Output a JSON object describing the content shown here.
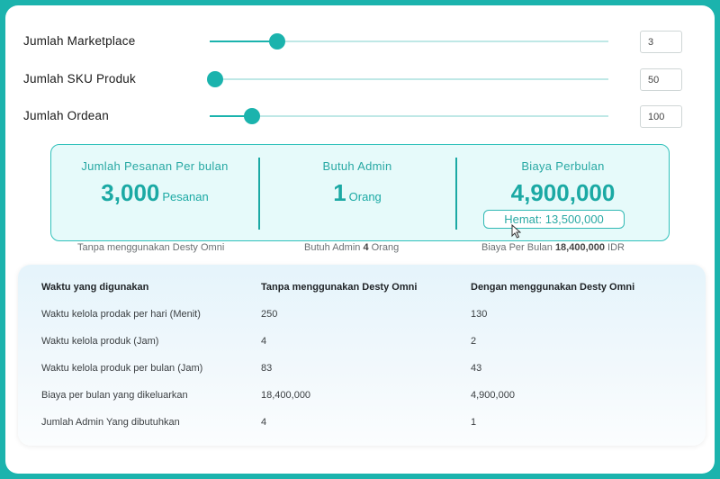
{
  "sliders": [
    {
      "label": "Jumlah Marketplace",
      "value": "3",
      "fill": 0.17
    },
    {
      "label": "Jumlah SKU Produk",
      "value": "50",
      "fill": 0.013
    },
    {
      "label": "Jumlah Ordean",
      "value": "100",
      "fill": 0.105
    }
  ],
  "stats": {
    "orders_title": "Jumlah Pesanan Per bulan",
    "orders_value": "3,000",
    "orders_unit": "Pesanan",
    "admin_title": "Butuh Admin",
    "admin_value": "1",
    "admin_unit": "Orang",
    "cost_title": "Biaya Perbulan",
    "cost_value": "4,900,000",
    "savings": "Hemat: 13,500,000"
  },
  "notes": {
    "orders": "Tanpa menggunakan Desty Omni",
    "admin_prefix": "Butuh Admin ",
    "admin_bold": "4",
    "admin_suffix": " Orang",
    "cost_prefix": "Biaya Per Bulan ",
    "cost_bold": "18,400,000",
    "cost_suffix": " IDR"
  },
  "table": {
    "headers": [
      "Waktu yang digunakan",
      "Tanpa menggunakan Desty Omni",
      "Dengan menggunakan Desty Omni"
    ],
    "rows": [
      [
        "Waktu kelola prodak per hari (Menit)",
        "250",
        "130"
      ],
      [
        "Waktu kelola produk (Jam)",
        "4",
        "2"
      ],
      [
        "Waktu kelola produk per bulan (Jam)",
        "83",
        "43"
      ],
      [
        "Biaya per bulan yang dikeluarkan",
        "18,400,000",
        "4,900,000"
      ],
      [
        "Jumlah Admin Yang dibutuhkan",
        "4",
        "1"
      ]
    ]
  },
  "colors": {
    "accent": "#1bb3ad",
    "panel": "#e6fafa"
  }
}
